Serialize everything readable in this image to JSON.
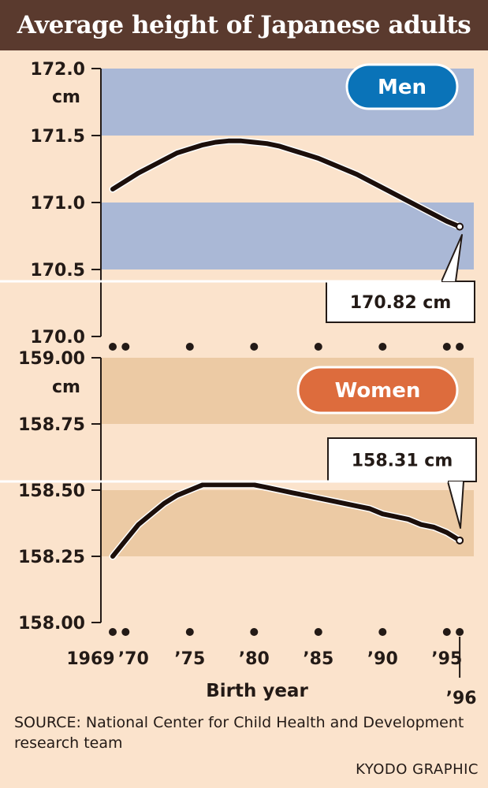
{
  "title": "Average height of Japanese adults",
  "source": "SOURCE: National Center for Child Health and Development research team",
  "credit": "KYODO GRAPHIC",
  "colors": {
    "title_bar": "#5a3a2e",
    "men_band": "#aab8d6",
    "men_badge": "#0a73b8",
    "women_band": "#eccaa4",
    "women_badge": "#dd6c3d",
    "line": "#1c0f0b"
  },
  "chart_data": [
    {
      "type": "line",
      "name": "Men",
      "badge": "Men",
      "ylim": [
        170.0,
        172.0
      ],
      "yticks": [
        "170.0",
        "170.5",
        "171.0",
        "171.5",
        "172.0"
      ],
      "ytick_values": [
        170.0,
        170.5,
        171.0,
        171.5,
        172.0
      ],
      "unit": "cm",
      "bands": [
        [
          171.5,
          172.0
        ],
        [
          170.5,
          171.0
        ]
      ],
      "x": [
        1969,
        1970,
        1971,
        1972,
        1973,
        1974,
        1975,
        1976,
        1977,
        1978,
        1979,
        1980,
        1981,
        1982,
        1983,
        1984,
        1985,
        1986,
        1987,
        1988,
        1989,
        1990,
        1991,
        1992,
        1993,
        1994,
        1995,
        1996
      ],
      "values": [
        171.1,
        171.16,
        171.22,
        171.27,
        171.32,
        171.37,
        171.4,
        171.43,
        171.45,
        171.46,
        171.46,
        171.45,
        171.44,
        171.42,
        171.39,
        171.36,
        171.33,
        171.29,
        171.25,
        171.21,
        171.16,
        171.11,
        171.06,
        171.01,
        170.96,
        170.91,
        170.86,
        170.82
      ],
      "callout": "170.82 cm"
    },
    {
      "type": "line",
      "name": "Women",
      "badge": "Women",
      "ylim": [
        158.0,
        159.0
      ],
      "yticks": [
        "158.00",
        "158.25",
        "158.50",
        "158.75",
        "159.00"
      ],
      "ytick_values": [
        158.0,
        158.25,
        158.5,
        158.75,
        159.0
      ],
      "unit": "cm",
      "bands": [
        [
          158.75,
          159.0
        ],
        [
          158.25,
          158.5
        ]
      ],
      "x": [
        1969,
        1970,
        1971,
        1972,
        1973,
        1974,
        1975,
        1976,
        1977,
        1978,
        1979,
        1980,
        1981,
        1982,
        1983,
        1984,
        1985,
        1986,
        1987,
        1988,
        1989,
        1990,
        1991,
        1992,
        1993,
        1994,
        1995,
        1996
      ],
      "values": [
        158.25,
        158.31,
        158.37,
        158.41,
        158.45,
        158.48,
        158.5,
        158.52,
        158.52,
        158.52,
        158.52,
        158.52,
        158.51,
        158.5,
        158.49,
        158.48,
        158.47,
        158.46,
        158.45,
        158.44,
        158.43,
        158.41,
        158.4,
        158.39,
        158.37,
        158.36,
        158.34,
        158.31
      ],
      "callout": "158.31 cm"
    }
  ],
  "x_axis": {
    "label": "Birth year",
    "tick_labels": [
      "1969",
      "’70",
      "’75",
      "’80",
      "’85",
      "’90",
      "’95",
      "’96"
    ],
    "tick_years": [
      1969,
      1970,
      1975,
      1980,
      1985,
      1990,
      1995,
      1996
    ]
  }
}
